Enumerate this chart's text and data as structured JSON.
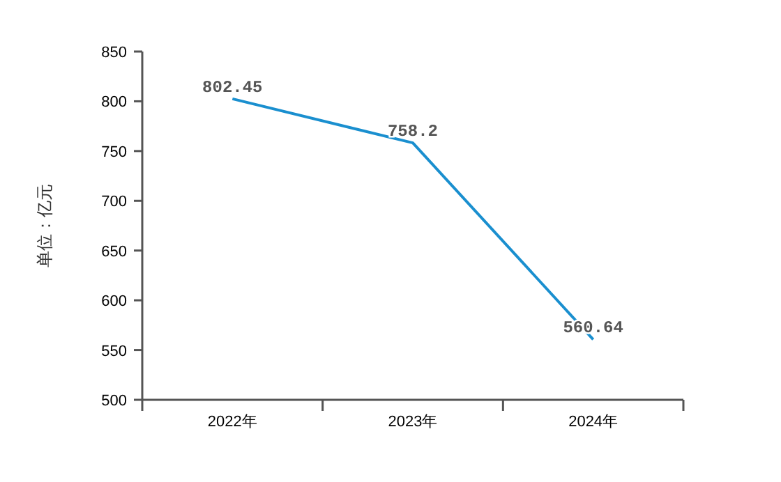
{
  "chart_data": {
    "type": "line",
    "ylabel": "单位：亿元",
    "categories": [
      "2022年",
      "2023年",
      "2024年"
    ],
    "series": [
      {
        "color": "#1a8fcf",
        "values": [
          802.45,
          758.2,
          560.64
        ]
      }
    ],
    "ylim": [
      500,
      850
    ],
    "yticks": [
      500,
      550,
      600,
      650,
      700,
      750,
      800,
      850
    ],
    "data_labels": true
  }
}
